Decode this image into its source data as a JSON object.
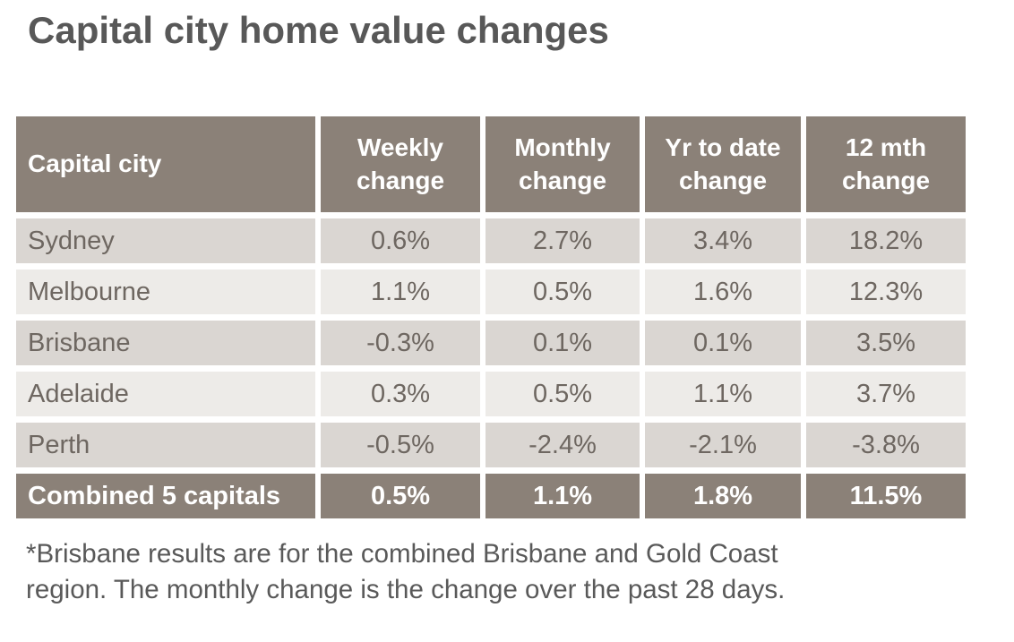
{
  "page": {
    "title": "Capital city home value changes"
  },
  "colors": {
    "header_bg": "#8B8178",
    "total_row_bg": "#8B8178",
    "row_alt_dark": "#DAD6D2",
    "row_alt_light": "#EDEBE8",
    "header_text": "#FFFFFF",
    "cell_text": "#6E6761",
    "title_text": "#585858",
    "footnote_text": "#595959"
  },
  "table": {
    "columns": [
      "Capital city",
      "Weekly change",
      "Monthly change",
      "Yr to date change",
      "12 mth change"
    ],
    "rows": [
      {
        "city": "Sydney",
        "weekly": "0.6%",
        "monthly": "2.7%",
        "ytd": "3.4%",
        "yr12": "18.2%"
      },
      {
        "city": "Melbourne",
        "weekly": "1.1%",
        "monthly": "0.5%",
        "ytd": "1.6%",
        "yr12": "12.3%"
      },
      {
        "city": "Brisbane",
        "weekly": "-0.3%",
        "monthly": "0.1%",
        "ytd": "0.1%",
        "yr12": "3.5%"
      },
      {
        "city": "Adelaide",
        "weekly": "0.3%",
        "monthly": "0.5%",
        "ytd": "1.1%",
        "yr12": "3.7%"
      },
      {
        "city": "Perth",
        "weekly": "-0.5%",
        "monthly": "-2.4%",
        "ytd": "-2.1%",
        "yr12": "-3.8%"
      }
    ],
    "total": {
      "city": "Combined 5 capitals",
      "weekly": "0.5%",
      "monthly": "1.1%",
      "ytd": "1.8%",
      "yr12": "11.5%"
    }
  },
  "footnote": {
    "line1": "*Brisbane results are for the combined Brisbane and Gold Coast",
    "line2": "region. The monthly change is the change over the past 28 days."
  },
  "chart_data": {
    "type": "table",
    "title": "Capital city home value changes",
    "columns": [
      "Capital city",
      "Weekly change",
      "Monthly change",
      "Yr to date change",
      "12 mth change"
    ],
    "rows": [
      [
        "Sydney",
        "0.6%",
        "2.7%",
        "3.4%",
        "18.2%"
      ],
      [
        "Melbourne",
        "1.1%",
        "0.5%",
        "1.6%",
        "12.3%"
      ],
      [
        "Brisbane",
        "-0.3%",
        "0.1%",
        "0.1%",
        "3.5%"
      ],
      [
        "Adelaide",
        "0.3%",
        "0.5%",
        "1.1%",
        "3.7%"
      ],
      [
        "Perth",
        "-0.5%",
        "-2.4%",
        "-2.1%",
        "-3.8%"
      ],
      [
        "Combined 5 capitals",
        "0.5%",
        "1.1%",
        "1.8%",
        "11.5%"
      ]
    ],
    "note": "*Brisbane results are for the combined Brisbane and Gold Coast region. The monthly change is the change over the past 28 days."
  }
}
